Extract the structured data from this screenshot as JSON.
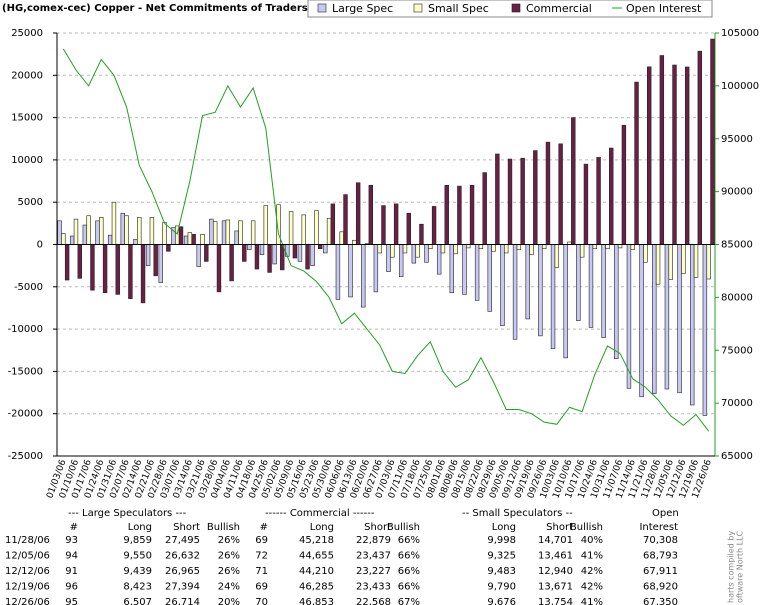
{
  "chart_data": {
    "type": "bar",
    "title": "(HG,comex-cec) Copper - Net Commitments of Traders",
    "categories": [
      "01/03/06",
      "01/10/06",
      "01/17/06",
      "01/24/06",
      "01/31/06",
      "02/07/06",
      "02/14/06",
      "02/21/06",
      "02/28/06",
      "03/07/06",
      "03/14/06",
      "03/21/06",
      "03/28/06",
      "04/04/06",
      "04/11/06",
      "04/18/06",
      "04/25/06",
      "05/02/06",
      "05/09/06",
      "05/16/06",
      "05/23/06",
      "05/30/06",
      "06/06/06",
      "06/13/06",
      "06/20/06",
      "06/27/06",
      "07/03/06",
      "07/11/06",
      "07/18/06",
      "07/25/06",
      "08/01/06",
      "08/08/06",
      "08/15/06",
      "08/22/06",
      "08/29/06",
      "09/05/06",
      "09/12/06",
      "09/19/06",
      "09/26/06",
      "10/03/06",
      "10/10/06",
      "10/17/06",
      "10/24/06",
      "10/31/06",
      "11/07/06",
      "11/14/06",
      "11/21/06",
      "11/28/06",
      "12/05/06",
      "12/12/06",
      "12/19/06",
      "12/26/06"
    ],
    "series": [
      {
        "name": "Large Spec",
        "type": "bar",
        "color": "#c8c8f4",
        "values": [
          2800,
          1000,
          2300,
          2800,
          1100,
          3700,
          600,
          -2500,
          -4500,
          2000,
          1000,
          -2600,
          3000,
          2800,
          1600,
          -600,
          -1200,
          -2300,
          -1400,
          -2000,
          -2500,
          -1000,
          -6500,
          -6200,
          -7400,
          -5600,
          -3200,
          -3800,
          -2200,
          -2100,
          -3500,
          -5700,
          -5900,
          -6600,
          -7900,
          -9600,
          -11200,
          -8800,
          -10800,
          -12300,
          -13400,
          -9000,
          -9800,
          -11000,
          -13500,
          -17000,
          -18000,
          -17636,
          -17082,
          -17526,
          -18971,
          -20207
        ]
      },
      {
        "name": "Small Spec",
        "type": "bar",
        "color": "#ffffc8",
        "values": [
          1300,
          3000,
          3400,
          3200,
          5000,
          3400,
          3200,
          3200,
          2600,
          2200,
          1400,
          1200,
          2700,
          2900,
          2800,
          2800,
          4600,
          4700,
          3900,
          3500,
          4000,
          3100,
          1500,
          500,
          100,
          -1000,
          -1500,
          -1000,
          -1500,
          -500,
          -1000,
          -1100,
          -400,
          -500,
          -800,
          -1000,
          -600,
          -1200,
          -500,
          -2700,
          300,
          -1500,
          -500,
          -500,
          -400,
          -600,
          -2100,
          -4703,
          -4136,
          -3457,
          -3881,
          -4078
        ]
      },
      {
        "name": "Commercial",
        "type": "bar",
        "color": "#6b1f45",
        "values": [
          -4200,
          -4000,
          -5400,
          -5700,
          -5900,
          -6400,
          -6900,
          -3700,
          -800,
          2100,
          1200,
          -2000,
          -5600,
          -4300,
          -2000,
          -2900,
          -3300,
          -3000,
          -1600,
          -2900,
          -500,
          4800,
          5900,
          7300,
          7000,
          4600,
          4800,
          3700,
          2400,
          4500,
          7000,
          6900,
          7000,
          8500,
          10700,
          10100,
          10200,
          11100,
          12100,
          11900,
          15000,
          9500,
          10300,
          11400,
          14100,
          19200,
          21000,
          22339,
          21218,
          20983,
          22852,
          24285
        ]
      },
      {
        "name": "Open Interest",
        "type": "line",
        "axis": "y2",
        "color": "#22a022",
        "values": [
          103500,
          101500,
          100000,
          102500,
          101000,
          98000,
          92500,
          90000,
          87000,
          86000,
          91000,
          97200,
          97500,
          100000,
          98000,
          99800,
          96000,
          86000,
          83000,
          82500,
          81500,
          80000,
          77500,
          78500,
          77000,
          75500,
          73000,
          72800,
          74500,
          75800,
          73000,
          71500,
          72200,
          74300,
          72000,
          69400,
          69400,
          69000,
          68200,
          68000,
          69600,
          69200,
          72700,
          75400,
          74700,
          72300,
          71500,
          70308,
          68793,
          67911,
          68920,
          67350
        ]
      }
    ],
    "ylim": [
      -25000,
      25000
    ],
    "yticks": [
      -25000,
      -20000,
      -15000,
      -10000,
      -5000,
      0,
      5000,
      10000,
      15000,
      20000,
      25000
    ],
    "y2lim": [
      65000,
      105000
    ],
    "y2ticks": [
      65000,
      70000,
      75000,
      80000,
      85000,
      90000,
      95000,
      100000,
      105000
    ],
    "grid": true
  },
  "table": {
    "groups": [
      "--- Large Speculators ---",
      "------ Commercial ------",
      "-- Small Speculators --",
      "Open"
    ],
    "columns": [
      "#",
      "Long",
      "Short",
      "Bullish",
      "#",
      "Long",
      "Short",
      "Bullish",
      "Long",
      "Short",
      "Bullish",
      "Interest"
    ],
    "rows": [
      [
        "11/28/06",
        "93",
        "9,859",
        "27,495",
        "26%",
        "69",
        "45,218",
        "22,879",
        "66%",
        "9,998",
        "14,701",
        "40%",
        "70,308"
      ],
      [
        "12/05/06",
        "94",
        "9,550",
        "26,632",
        "26%",
        "72",
        "44,655",
        "23,437",
        "66%",
        "9,325",
        "13,461",
        "41%",
        "68,793"
      ],
      [
        "12/12/06",
        "91",
        "9,439",
        "26,965",
        "26%",
        "71",
        "44,210",
        "23,227",
        "66%",
        "9,483",
        "12,940",
        "42%",
        "67,911"
      ],
      [
        "12/19/06",
        "96",
        "8,423",
        "27,394",
        "24%",
        "69",
        "46,285",
        "23,433",
        "66%",
        "9,790",
        "13,671",
        "42%",
        "68,920"
      ],
      [
        "12/26/06",
        "95",
        "6,507",
        "26,714",
        "20%",
        "70",
        "46,853",
        "22,568",
        "67%",
        "9,676",
        "13,754",
        "41%",
        "67,350"
      ]
    ]
  },
  "watermark": [
    "harts compiled by",
    "oftware North LLC"
  ]
}
